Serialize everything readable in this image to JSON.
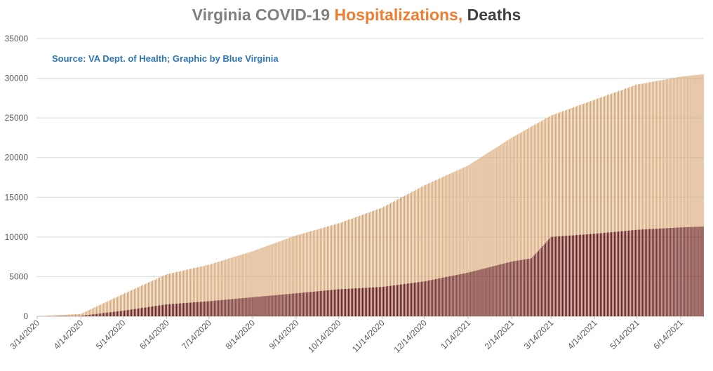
{
  "title": {
    "part1": "Virginia COVID-19",
    "part2": "Hospitalizations,",
    "part3": "Deaths"
  },
  "source_note": "Source: VA Dept. of Health; Graphic by Blue Virginia",
  "colors": {
    "hospitalizations": "#d9a673",
    "deaths": "#6b1f1f",
    "title_grey": "#7f7f7f",
    "title_orange": "#ed7d31",
    "title_dark": "#404040",
    "source_blue": "#2e75b6",
    "grid": "#d9d9d9"
  },
  "chart_data": {
    "type": "bar",
    "title": "Virginia COVID-19 Hospitalizations, Deaths",
    "x_tick_labels": [
      "3/14/2020",
      "4/14/2020",
      "5/14/2020",
      "6/14/2020",
      "7/14/2020",
      "8/14/2020",
      "9/14/2020",
      "10/14/2020",
      "11/14/2020",
      "12/14/2020",
      "1/14/2021",
      "2/14/2021",
      "3/14/2021",
      "4/14/2021",
      "5/14/2021",
      "6/14/2021"
    ],
    "ylim": [
      0,
      35000
    ],
    "y_ticks": [
      0,
      5000,
      10000,
      15000,
      20000,
      25000,
      30000,
      35000
    ],
    "grid": true,
    "legend": "none",
    "series": [
      {
        "key": "hospitalizations",
        "dates": [
          "3/14/2020",
          "4/14/2020",
          "5/14/2020",
          "6/14/2020",
          "7/14/2020",
          "8/14/2020",
          "9/14/2020",
          "10/14/2020",
          "11/14/2020",
          "12/14/2020",
          "1/14/2021",
          "2/14/2021",
          "3/14/2021",
          "4/14/2021",
          "5/14/2021",
          "6/14/2021",
          "6/30/2021"
        ],
        "values": [
          0,
          300,
          2800,
          5300,
          6500,
          8200,
          10200,
          11700,
          13700,
          16500,
          19000,
          22500,
          25300,
          27300,
          29200,
          30200,
          30500
        ]
      },
      {
        "key": "deaths",
        "dates": [
          "3/14/2020",
          "4/14/2020",
          "5/14/2020",
          "6/14/2020",
          "7/14/2020",
          "8/14/2020",
          "9/14/2020",
          "10/14/2020",
          "11/14/2020",
          "12/14/2020",
          "1/14/2021",
          "2/14/2021",
          "2/28/2021",
          "3/14/2021",
          "4/14/2021",
          "5/14/2021",
          "6/14/2021",
          "6/30/2021"
        ],
        "values": [
          0,
          60,
          700,
          1500,
          1900,
          2400,
          2900,
          3400,
          3700,
          4400,
          5500,
          6900,
          7300,
          10000,
          10400,
          10900,
          11200,
          11300
        ]
      }
    ]
  }
}
